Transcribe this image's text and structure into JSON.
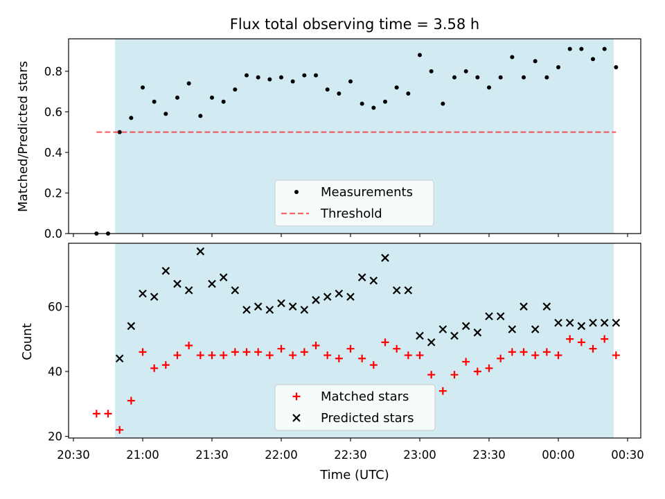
{
  "figure_title": "Flux total observing time = 3.58 h",
  "colors": {
    "span": "#add8e6",
    "measurements": "#000000",
    "threshold": "#ff0000",
    "matched": "#ff0000",
    "predicted": "#000000"
  },
  "chart_data": [
    {
      "type": "scatter",
      "ylabel": "Matched/Predicted stars",
      "ylim": [
        0,
        0.96
      ],
      "yticks": [
        "0.0",
        "0.2",
        "0.4",
        "0.6",
        "0.8"
      ],
      "xlim": [
        "20:30",
        "00:30"
      ],
      "shaded_span": [
        "20:48",
        "00:24"
      ],
      "legend_placement": "lower-center",
      "series": [
        {
          "name": "Measurements",
          "marker": "dot",
          "x": [
            "20:40",
            "20:45",
            "20:50",
            "20:55",
            "21:00",
            "21:05",
            "21:10",
            "21:15",
            "21:20",
            "21:25",
            "21:30",
            "21:35",
            "21:40",
            "21:45",
            "21:50",
            "21:55",
            "22:00",
            "22:05",
            "22:10",
            "22:15",
            "22:20",
            "22:25",
            "22:30",
            "22:35",
            "22:40",
            "22:45",
            "22:50",
            "22:55",
            "23:00",
            "23:05",
            "23:10",
            "23:15",
            "23:20",
            "23:25",
            "23:30",
            "23:35",
            "23:40",
            "23:45",
            "23:50",
            "23:55",
            "00:00",
            "00:05",
            "00:10",
            "00:15",
            "00:20",
            "00:25"
          ],
          "y": [
            0.0,
            0.0,
            0.5,
            0.57,
            0.72,
            0.65,
            0.59,
            0.67,
            0.74,
            0.58,
            0.67,
            0.65,
            0.71,
            0.78,
            0.77,
            0.76,
            0.77,
            0.75,
            0.78,
            0.78,
            0.71,
            0.69,
            0.75,
            0.64,
            0.62,
            0.65,
            0.72,
            0.69,
            0.88,
            0.8,
            0.64,
            0.77,
            0.8,
            0.77,
            0.72,
            0.77,
            0.87,
            0.77,
            0.85,
            0.77,
            0.82,
            0.91,
            0.91,
            0.86,
            0.91,
            0.82
          ]
        },
        {
          "name": "Threshold",
          "marker": "dashed-line",
          "x": [
            "20:40",
            "00:25"
          ],
          "y": [
            0.5,
            0.5
          ]
        }
      ]
    },
    {
      "type": "scatter",
      "xlabel": "Time (UTC)",
      "ylabel": "Count",
      "ylim": [
        19.5,
        79.5
      ],
      "yticks": [
        "20",
        "40",
        "60"
      ],
      "xlim": [
        "20:30",
        "00:30"
      ],
      "xticks": [
        "20:30",
        "21:00",
        "21:30",
        "22:00",
        "22:30",
        "23:00",
        "23:30",
        "00:00",
        "00:30"
      ],
      "shaded_span": [
        "20:48",
        "00:24"
      ],
      "legend_placement": "lower-center",
      "series": [
        {
          "name": "Matched stars",
          "marker": "plus",
          "x": [
            "20:40",
            "20:45",
            "20:50",
            "20:55",
            "21:00",
            "21:05",
            "21:10",
            "21:15",
            "21:20",
            "21:25",
            "21:30",
            "21:35",
            "21:40",
            "21:45",
            "21:50",
            "21:55",
            "22:00",
            "22:05",
            "22:10",
            "22:15",
            "22:20",
            "22:25",
            "22:30",
            "22:35",
            "22:40",
            "22:45",
            "22:50",
            "22:55",
            "23:00",
            "23:05",
            "23:10",
            "23:15",
            "23:20",
            "23:25",
            "23:30",
            "23:35",
            "23:40",
            "23:45",
            "23:50",
            "23:55",
            "00:00",
            "00:05",
            "00:10",
            "00:15",
            "00:20",
            "00:25"
          ],
          "y": [
            27,
            27,
            22,
            31,
            46,
            41,
            42,
            45,
            48,
            45,
            45,
            45,
            46,
            46,
            46,
            45,
            47,
            45,
            46,
            48,
            45,
            44,
            47,
            44,
            42,
            49,
            47,
            45,
            45,
            39,
            34,
            39,
            43,
            40,
            41,
            44,
            46,
            46,
            45,
            46,
            45,
            50,
            49,
            47,
            50,
            45
          ]
        },
        {
          "name": "Predicted stars",
          "marker": "x",
          "x": [
            "20:50",
            "20:55",
            "21:00",
            "21:05",
            "21:10",
            "21:15",
            "21:20",
            "21:25",
            "21:30",
            "21:35",
            "21:40",
            "21:45",
            "21:50",
            "21:55",
            "22:00",
            "22:05",
            "22:10",
            "22:15",
            "22:20",
            "22:25",
            "22:30",
            "22:35",
            "22:40",
            "22:45",
            "22:50",
            "22:55",
            "23:00",
            "23:05",
            "23:10",
            "23:15",
            "23:20",
            "23:25",
            "23:30",
            "23:35",
            "23:40",
            "23:45",
            "23:50",
            "23:55",
            "00:00",
            "00:05",
            "00:10",
            "00:15",
            "00:20",
            "00:25"
          ],
          "y": [
            44,
            54,
            64,
            63,
            71,
            67,
            65,
            77,
            67,
            69,
            65,
            59,
            60,
            59,
            61,
            60,
            59,
            62,
            63,
            64,
            63,
            69,
            68,
            75,
            65,
            65,
            51,
            49,
            53,
            51,
            54,
            52,
            57,
            57,
            53,
            60,
            53,
            60,
            55,
            55,
            54,
            55,
            55,
            55
          ]
        }
      ]
    }
  ]
}
